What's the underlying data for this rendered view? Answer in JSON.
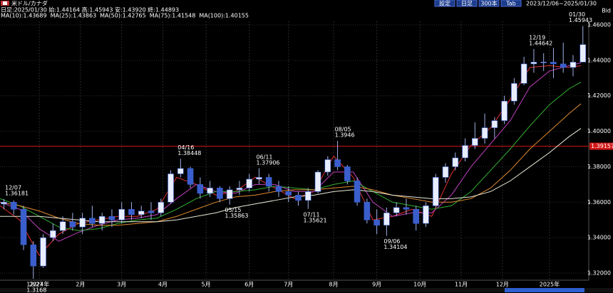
{
  "chart_data": {
    "type": "candlestick",
    "title": "米ドル/カナダ",
    "summary": "日足:2025/01/30 始:1.44164 高:1.45943 安:1.43920 終:1.44893",
    "toolbar": {
      "buttons": [
        "設定",
        "日足",
        "300本",
        "Tab"
      ],
      "range": "2023/12/06~2025/01/30"
    },
    "price_side": "Bid",
    "xlim": [
      0,
      300
    ],
    "xticks": [
      {
        "value": 20,
        "label": "2024年"
      },
      {
        "value": 41,
        "label": "2月"
      },
      {
        "value": 62,
        "label": "3月"
      },
      {
        "value": 83,
        "label": "4月"
      },
      {
        "value": 105,
        "label": "5月"
      },
      {
        "value": 127,
        "label": "6月"
      },
      {
        "value": 147,
        "label": "7月"
      },
      {
        "value": 170,
        "label": "8月"
      },
      {
        "value": 192,
        "label": "9月"
      },
      {
        "value": 214,
        "label": "10月"
      },
      {
        "value": 235,
        "label": "11月"
      },
      {
        "value": 256,
        "label": "12月"
      },
      {
        "value": 280,
        "label": "2025年"
      }
    ],
    "ylim": [
      1.316,
      1.462
    ],
    "yticks": [
      {
        "value": 1.32,
        "label": "1.32000"
      },
      {
        "value": 1.34,
        "label": "1.34000"
      },
      {
        "value": 1.36,
        "label": "1.36000"
      },
      {
        "value": 1.38,
        "label": "1.38000"
      },
      {
        "value": 1.4,
        "label": "1.40000"
      },
      {
        "value": 1.42,
        "label": "1.42000"
      },
      {
        "value": 1.44,
        "label": "1.44000"
      },
      {
        "value": 1.46,
        "label": "1.46000"
      }
    ],
    "grid": true,
    "hline": 1.39157,
    "hline_color": "#d01818",
    "up_color": "#e8eeff",
    "down_color": "#3a5fcd",
    "wick_color": "#9fb0e6",
    "candles": {
      "x": [
        2,
        7,
        12,
        17,
        22,
        27,
        32,
        37,
        42,
        47,
        52,
        57,
        62,
        67,
        72,
        77,
        82,
        87,
        92,
        97,
        102,
        107,
        112,
        117,
        122,
        127,
        132,
        137,
        142,
        147,
        152,
        157,
        162,
        167,
        172,
        177,
        182,
        187,
        192,
        197,
        202,
        207,
        212,
        217,
        222,
        227,
        232,
        237,
        242,
        247,
        252,
        257,
        262,
        267,
        272,
        277,
        282,
        287,
        292,
        297
      ],
      "open": [
        1.359,
        1.36,
        1.356,
        1.336,
        1.324,
        1.34,
        1.344,
        1.349,
        1.346,
        1.351,
        1.348,
        1.352,
        1.35,
        1.356,
        1.353,
        1.355,
        1.354,
        1.36,
        1.376,
        1.379,
        1.37,
        1.365,
        1.368,
        1.362,
        1.367,
        1.368,
        1.373,
        1.374,
        1.369,
        1.366,
        1.364,
        1.361,
        1.366,
        1.377,
        1.384,
        1.38,
        1.372,
        1.36,
        1.35,
        1.347,
        1.354,
        1.357,
        1.356,
        1.348,
        1.358,
        1.374,
        1.38,
        1.385,
        1.392,
        1.396,
        1.402,
        1.406,
        1.417,
        1.427,
        1.438,
        1.439,
        1.439,
        1.438,
        1.436,
        1.439
      ],
      "high": [
        1.3618,
        1.361,
        1.358,
        1.338,
        1.342,
        1.348,
        1.352,
        1.354,
        1.354,
        1.358,
        1.354,
        1.356,
        1.36,
        1.36,
        1.358,
        1.36,
        1.362,
        1.378,
        1.3845,
        1.38,
        1.374,
        1.372,
        1.369,
        1.369,
        1.372,
        1.376,
        1.3791,
        1.376,
        1.372,
        1.369,
        1.366,
        1.368,
        1.378,
        1.386,
        1.3946,
        1.381,
        1.374,
        1.362,
        1.356,
        1.357,
        1.36,
        1.362,
        1.358,
        1.36,
        1.376,
        1.382,
        1.388,
        1.396,
        1.405,
        1.41,
        1.408,
        1.42,
        1.43,
        1.442,
        1.4464,
        1.444,
        1.447,
        1.45,
        1.443,
        1.4594
      ],
      "low": [
        1.356,
        1.353,
        1.333,
        1.3168,
        1.323,
        1.338,
        1.342,
        1.344,
        1.342,
        1.346,
        1.344,
        1.346,
        1.348,
        1.35,
        1.351,
        1.35,
        1.352,
        1.359,
        1.374,
        1.368,
        1.362,
        1.363,
        1.36,
        1.3586,
        1.364,
        1.366,
        1.37,
        1.366,
        1.363,
        1.36,
        1.358,
        1.3562,
        1.365,
        1.375,
        1.378,
        1.37,
        1.358,
        1.348,
        1.342,
        1.341,
        1.352,
        1.353,
        1.344,
        1.346,
        1.357,
        1.371,
        1.378,
        1.383,
        1.39,
        1.393,
        1.396,
        1.404,
        1.415,
        1.426,
        1.433,
        1.434,
        1.43,
        1.433,
        1.431,
        1.4392
      ],
      "close": [
        1.36,
        1.356,
        1.336,
        1.324,
        1.34,
        1.344,
        1.349,
        1.346,
        1.351,
        1.348,
        1.352,
        1.35,
        1.356,
        1.353,
        1.355,
        1.354,
        1.36,
        1.376,
        1.379,
        1.37,
        1.365,
        1.368,
        1.362,
        1.367,
        1.368,
        1.373,
        1.374,
        1.369,
        1.366,
        1.364,
        1.361,
        1.366,
        1.377,
        1.384,
        1.38,
        1.372,
        1.36,
        1.35,
        1.347,
        1.354,
        1.357,
        1.356,
        1.348,
        1.358,
        1.374,
        1.38,
        1.385,
        1.392,
        1.396,
        1.402,
        1.406,
        1.417,
        1.427,
        1.438,
        1.439,
        1.439,
        1.438,
        1.436,
        1.439,
        1.4489
      ]
    },
    "ma_x": [
      0,
      10,
      20,
      30,
      40,
      50,
      60,
      70,
      80,
      90,
      100,
      110,
      120,
      130,
      140,
      150,
      160,
      170,
      180,
      190,
      200,
      210,
      220,
      230,
      240,
      250,
      260,
      270,
      280,
      290,
      296
    ],
    "ma_series": [
      {
        "name": "MA(10):1.43689",
        "color": "#e03030",
        "values": [
          1.358,
          1.35,
          1.33,
          1.342,
          1.348,
          1.35,
          1.352,
          1.352,
          1.356,
          1.374,
          1.37,
          1.364,
          1.366,
          1.374,
          1.368,
          1.362,
          1.366,
          1.386,
          1.374,
          1.35,
          1.352,
          1.356,
          1.352,
          1.376,
          1.392,
          1.402,
          1.418,
          1.436,
          1.437,
          1.436,
          1.437
        ]
      },
      {
        "name": "MA(25):1.43863",
        "color": "#c040c0",
        "values": [
          1.36,
          1.356,
          1.345,
          1.338,
          1.343,
          1.347,
          1.35,
          1.351,
          1.353,
          1.362,
          1.37,
          1.366,
          1.365,
          1.37,
          1.37,
          1.366,
          1.366,
          1.377,
          1.377,
          1.36,
          1.352,
          1.354,
          1.354,
          1.364,
          1.38,
          1.393,
          1.406,
          1.425,
          1.434,
          1.437,
          1.4386
        ]
      },
      {
        "name": "MA(50):1.42765",
        "color": "#30b030",
        "values": [
          1.362,
          1.358,
          1.352,
          1.346,
          1.344,
          1.345,
          1.348,
          1.35,
          1.351,
          1.356,
          1.362,
          1.366,
          1.366,
          1.367,
          1.369,
          1.368,
          1.367,
          1.37,
          1.372,
          1.366,
          1.36,
          1.358,
          1.356,
          1.358,
          1.366,
          1.378,
          1.39,
          1.403,
          1.415,
          1.424,
          1.4277
        ]
      },
      {
        "name": "MA(75):1.41548",
        "color": "#e08a30",
        "values": [
          1.36,
          1.358,
          1.355,
          1.351,
          1.348,
          1.347,
          1.347,
          1.348,
          1.349,
          1.352,
          1.356,
          1.36,
          1.363,
          1.364,
          1.366,
          1.367,
          1.367,
          1.368,
          1.369,
          1.367,
          1.364,
          1.362,
          1.36,
          1.36,
          1.362,
          1.368,
          1.378,
          1.39,
          1.4,
          1.41,
          1.4155
        ]
      },
      {
        "name": "MA(100):1.40155",
        "color": "#e8e8d8",
        "values": [
          1.352,
          1.352,
          1.352,
          1.351,
          1.35,
          1.349,
          1.349,
          1.349,
          1.349,
          1.35,
          1.352,
          1.354,
          1.357,
          1.359,
          1.361,
          1.363,
          1.364,
          1.366,
          1.367,
          1.366,
          1.364,
          1.363,
          1.362,
          1.362,
          1.363,
          1.366,
          1.372,
          1.38,
          1.388,
          1.397,
          1.4016
        ]
      }
    ],
    "annotations": [
      {
        "date": "12/07",
        "value": 1.36181,
        "x": 4
      },
      {
        "date": "12/27",
        "value": 1.3168,
        "x": 15
      },
      {
        "date": "04/16",
        "value": 1.38448,
        "x": 92
      },
      {
        "date": "05/15",
        "value": 1.35863,
        "x": 116
      },
      {
        "date": "06/11",
        "value": 1.37906,
        "x": 132
      },
      {
        "date": "07/11",
        "value": 1.35621,
        "x": 156
      },
      {
        "date": "08/05",
        "value": 1.3946,
        "x": 172
      },
      {
        "date": "09/06",
        "value": 1.34104,
        "x": 197
      },
      {
        "date": "12/19",
        "value": 1.44642,
        "x": 271
      },
      {
        "date": "01/30",
        "value": 1.45943,
        "x": 296
      }
    ]
  }
}
